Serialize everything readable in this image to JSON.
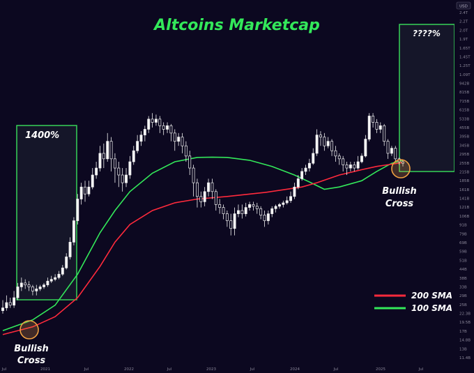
{
  "chart_data": {
    "type": "candlestick",
    "title": "Altcoins Marketcap",
    "currency": "USD",
    "y_scale": "log",
    "y_ticks": [
      "2.4T",
      "2.2T",
      "2.0T",
      "1.9T",
      "1.65T",
      "1.45T",
      "1.25T",
      "1.09T",
      "942B",
      "815B",
      "715B",
      "615B",
      "533B",
      "455B",
      "395B",
      "345B",
      "295B",
      "255B",
      "215B",
      "185B",
      "161B",
      "141B",
      "121B",
      "106B",
      "91B",
      "79B",
      "69B",
      "59B",
      "51B",
      "44B",
      "38B",
      "33B",
      "29B",
      "25B",
      "22.3B",
      "19.5B",
      "17B",
      "14.8B",
      "13B",
      "11.4B"
    ],
    "x_ticks": [
      "Jul",
      "2021",
      "Jul",
      "2022",
      "Jul",
      "2023",
      "Jul",
      "2024",
      "Jul",
      "2025",
      "Jul"
    ],
    "series": [
      {
        "name": "200 SMA",
        "color": "#ff2a3c"
      },
      {
        "name": "100 SMA",
        "color": "#33e85a"
      }
    ],
    "annotations": {
      "left_box_label": "1400%",
      "right_box_label": "????%",
      "cross_label_line1": "Bullish",
      "cross_label_line2": "Cross"
    },
    "legend_placement": "bottom-right",
    "candles": [
      [
        0,
        23,
        24,
        27,
        22
      ],
      [
        1,
        24,
        26,
        29,
        23
      ],
      [
        2,
        26,
        25,
        28,
        24
      ],
      [
        3,
        25,
        28,
        31,
        24
      ],
      [
        4,
        28,
        33,
        35,
        27
      ],
      [
        5,
        33,
        35,
        38,
        31
      ],
      [
        6,
        35,
        34,
        37,
        32
      ],
      [
        7,
        34,
        33,
        36,
        31
      ],
      [
        8,
        33,
        31,
        34,
        29
      ],
      [
        9,
        31,
        32,
        34,
        29
      ],
      [
        10,
        32,
        33,
        34,
        31
      ],
      [
        11,
        33,
        34,
        35,
        32
      ],
      [
        12,
        34,
        36,
        38,
        33
      ],
      [
        13,
        36,
        37,
        39,
        35
      ],
      [
        14,
        37,
        38,
        40,
        36
      ],
      [
        15,
        38,
        40,
        42,
        37
      ],
      [
        16,
        40,
        44,
        46,
        39
      ],
      [
        17,
        44,
        52,
        55,
        43
      ],
      [
        18,
        52,
        65,
        70,
        50
      ],
      [
        19,
        65,
        90,
        95,
        62
      ],
      [
        20,
        90,
        125,
        135,
        85
      ],
      [
        21,
        125,
        150,
        160,
        115
      ],
      [
        22,
        150,
        135,
        165,
        120
      ],
      [
        23,
        135,
        150,
        165,
        130
      ],
      [
        24,
        150,
        180,
        200,
        145
      ],
      [
        25,
        180,
        200,
        220,
        170
      ],
      [
        26,
        200,
        250,
        280,
        190
      ],
      [
        27,
        250,
        230,
        290,
        200
      ],
      [
        28,
        230,
        300,
        340,
        220
      ],
      [
        29,
        300,
        230,
        320,
        190
      ],
      [
        30,
        230,
        200,
        250,
        160
      ],
      [
        31,
        200,
        180,
        220,
        150
      ],
      [
        32,
        180,
        160,
        200,
        140
      ],
      [
        33,
        160,
        180,
        200,
        150
      ],
      [
        34,
        180,
        220,
        240,
        170
      ],
      [
        35,
        220,
        260,
        280,
        210
      ],
      [
        36,
        260,
        300,
        330,
        250
      ],
      [
        37,
        300,
        330,
        350,
        280
      ],
      [
        38,
        330,
        360,
        380,
        300
      ],
      [
        39,
        360,
        420,
        440,
        340
      ],
      [
        40,
        420,
        400,
        460,
        370
      ],
      [
        41,
        400,
        420,
        450,
        380
      ],
      [
        42,
        420,
        380,
        440,
        340
      ],
      [
        43,
        380,
        360,
        400,
        330
      ],
      [
        44,
        360,
        380,
        400,
        340
      ],
      [
        45,
        380,
        340,
        390,
        300
      ],
      [
        46,
        340,
        300,
        360,
        260
      ],
      [
        47,
        300,
        320,
        340,
        280
      ],
      [
        48,
        320,
        280,
        340,
        250
      ],
      [
        49,
        280,
        240,
        300,
        220
      ],
      [
        50,
        240,
        200,
        260,
        180
      ],
      [
        51,
        200,
        160,
        210,
        130
      ],
      [
        52,
        160,
        130,
        170,
        110
      ],
      [
        53,
        130,
        120,
        140,
        110
      ],
      [
        54,
        120,
        140,
        150,
        112
      ],
      [
        55,
        140,
        160,
        170,
        130
      ],
      [
        56,
        160,
        140,
        170,
        125
      ],
      [
        57,
        140,
        115,
        145,
        105
      ],
      [
        58,
        115,
        110,
        125,
        100
      ],
      [
        59,
        110,
        100,
        115,
        92
      ],
      [
        60,
        100,
        90,
        105,
        82
      ],
      [
        61,
        90,
        80,
        100,
        72
      ],
      [
        62,
        80,
        100,
        110,
        72
      ],
      [
        63,
        100,
        105,
        115,
        95
      ],
      [
        64,
        105,
        100,
        115,
        93
      ],
      [
        65,
        100,
        110,
        118,
        96
      ],
      [
        66,
        110,
        115,
        120,
        105
      ],
      [
        67,
        115,
        112,
        120,
        105
      ],
      [
        68,
        112,
        108,
        118,
        100
      ],
      [
        69,
        108,
        98,
        112,
        92
      ],
      [
        70,
        98,
        90,
        105,
        82
      ],
      [
        71,
        90,
        100,
        105,
        85
      ],
      [
        72,
        100,
        108,
        112,
        95
      ],
      [
        73,
        108,
        112,
        115,
        102
      ],
      [
        74,
        112,
        115,
        118,
        108
      ],
      [
        75,
        115,
        118,
        122,
        110
      ],
      [
        76,
        118,
        122,
        130,
        115
      ],
      [
        77,
        122,
        130,
        140,
        118
      ],
      [
        78,
        130,
        150,
        160,
        125
      ],
      [
        79,
        150,
        170,
        180,
        145
      ],
      [
        80,
        170,
        190,
        200,
        165
      ],
      [
        81,
        190,
        200,
        210,
        180
      ],
      [
        82,
        200,
        215,
        230,
        190
      ],
      [
        83,
        215,
        250,
        270,
        210
      ],
      [
        84,
        250,
        330,
        360,
        240
      ],
      [
        85,
        330,
        320,
        350,
        280
      ],
      [
        86,
        320,
        280,
        340,
        260
      ],
      [
        87,
        280,
        300,
        320,
        270
      ],
      [
        88,
        300,
        260,
        310,
        240
      ],
      [
        89,
        260,
        240,
        280,
        220
      ],
      [
        90,
        240,
        230,
        250,
        210
      ],
      [
        91,
        230,
        210,
        240,
        190
      ],
      [
        92,
        210,
        200,
        220,
        180
      ],
      [
        93,
        200,
        210,
        220,
        190
      ],
      [
        94,
        210,
        200,
        220,
        190
      ],
      [
        95,
        200,
        220,
        240,
        195
      ],
      [
        96,
        220,
        240,
        250,
        215
      ],
      [
        97,
        240,
        310,
        330,
        235
      ],
      [
        98,
        310,
        440,
        460,
        300
      ],
      [
        99,
        440,
        400,
        460,
        370
      ],
      [
        100,
        400,
        360,
        420,
        340
      ],
      [
        101,
        360,
        380,
        400,
        340
      ],
      [
        102,
        380,
        300,
        390,
        280
      ],
      [
        103,
        300,
        250,
        310,
        230
      ],
      [
        104,
        250,
        270,
        280,
        240
      ],
      [
        105,
        270,
        230,
        280,
        220
      ],
      [
        106,
        230,
        220,
        235,
        210
      ],
      [
        107,
        220,
        215,
        225,
        205
      ]
    ],
    "sma200": [
      [
        0,
        16
      ],
      [
        8,
        18
      ],
      [
        14,
        21
      ],
      [
        20,
        28
      ],
      [
        26,
        45
      ],
      [
        30,
        65
      ],
      [
        34,
        85
      ],
      [
        40,
        105
      ],
      [
        46,
        118
      ],
      [
        52,
        125
      ],
      [
        60,
        130
      ],
      [
        70,
        138
      ],
      [
        80,
        150
      ],
      [
        84,
        160
      ],
      [
        90,
        180
      ],
      [
        96,
        195
      ],
      [
        100,
        205
      ],
      [
        104,
        212
      ],
      [
        107,
        218
      ]
    ],
    "sma100": [
      [
        0,
        17
      ],
      [
        8,
        20
      ],
      [
        14,
        25
      ],
      [
        20,
        40
      ],
      [
        26,
        75
      ],
      [
        30,
        105
      ],
      [
        34,
        140
      ],
      [
        40,
        185
      ],
      [
        46,
        220
      ],
      [
        52,
        235
      ],
      [
        56,
        236
      ],
      [
        60,
        235
      ],
      [
        66,
        225
      ],
      [
        72,
        205
      ],
      [
        78,
        180
      ],
      [
        82,
        162
      ],
      [
        86,
        145
      ],
      [
        90,
        150
      ],
      [
        96,
        165
      ],
      [
        100,
        190
      ],
      [
        104,
        215
      ],
      [
        107,
        225
      ]
    ]
  }
}
